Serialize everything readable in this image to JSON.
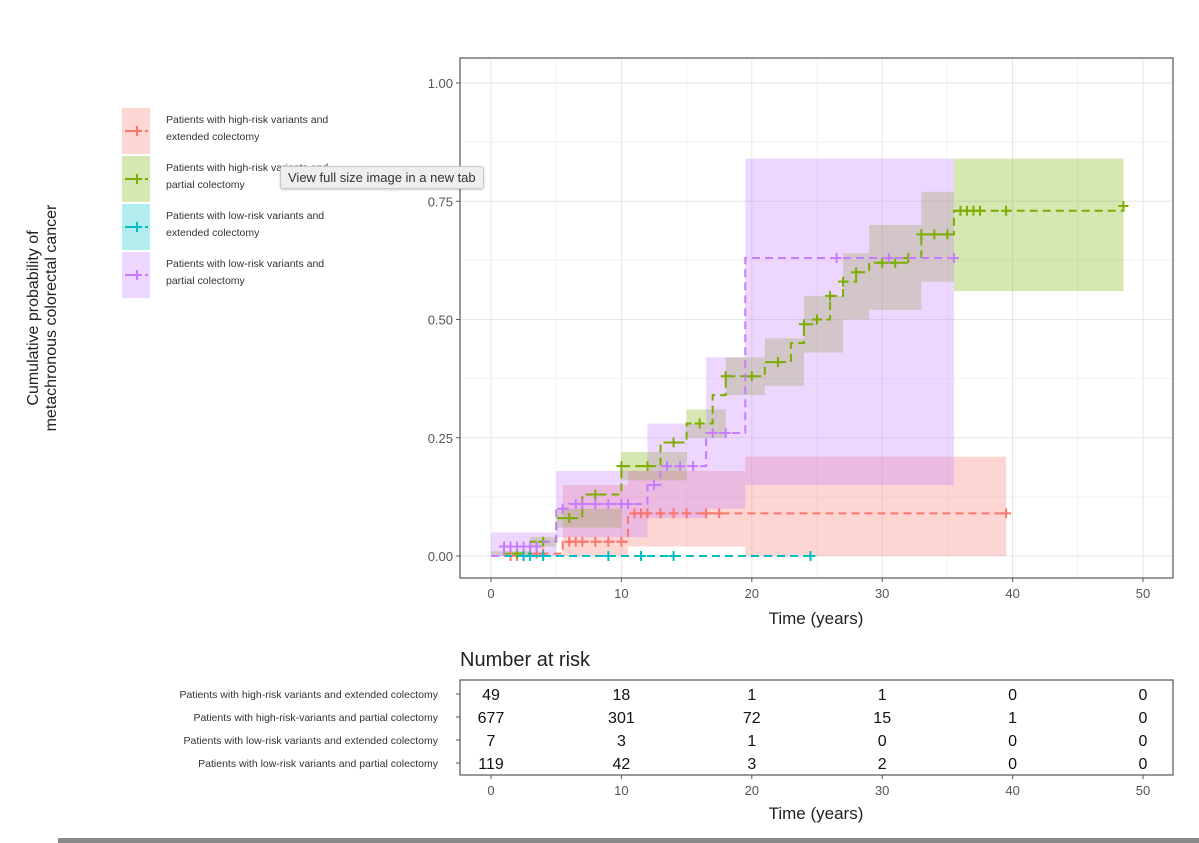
{
  "tooltip": "View full size image in a new tab",
  "chart_data": {
    "type": "line",
    "subtype": "kaplan-meier cumulative incidence (step) with confidence ribbons",
    "ylabel": [
      "Cumulative probability of",
      "metachronous colorectal cancer"
    ],
    "xlabel": "Time (years)",
    "xlim": [
      0,
      50
    ],
    "ylim": [
      0,
      1
    ],
    "xticks": [
      0,
      10,
      20,
      30,
      40,
      50
    ],
    "yticks": [
      "0.00",
      "0.25",
      "0.50",
      "0.75",
      "1.00"
    ],
    "grid": true,
    "legend_position": "left",
    "series": [
      {
        "name": "Patients with high-risk variants and extended colectomy",
        "color": "#f8766d",
        "steps": [
          [
            0,
            0
          ],
          [
            3,
            0.005
          ],
          [
            5.5,
            0.03
          ],
          [
            10.5,
            0.09
          ],
          [
            39.5,
            0.09
          ]
        ],
        "ci_lower": [
          [
            0,
            0
          ],
          [
            5.5,
            0
          ],
          [
            10.5,
            0.02
          ],
          [
            19.5,
            0
          ],
          [
            39.5,
            0
          ]
        ],
        "ci_upper": [
          [
            0,
            0
          ],
          [
            5.5,
            0.15
          ],
          [
            10.5,
            0.18
          ],
          [
            19.5,
            0.21
          ],
          [
            39.5,
            0.21
          ]
        ],
        "censored": [
          1.5,
          2,
          2.5,
          3.5,
          4,
          6,
          6.5,
          7,
          8,
          9,
          10,
          11,
          11.5,
          12,
          13,
          14,
          15,
          16.5,
          17.5,
          39.5
        ]
      },
      {
        "name": "Patients with high-risk variants and partial colectomy",
        "color": "#7cae00",
        "steps": [
          [
            0,
            0
          ],
          [
            1,
            0.005
          ],
          [
            3,
            0.03
          ],
          [
            5,
            0.08
          ],
          [
            7,
            0.13
          ],
          [
            10,
            0.19
          ],
          [
            13,
            0.24
          ],
          [
            15,
            0.28
          ],
          [
            17,
            0.34
          ],
          [
            18,
            0.38
          ],
          [
            19.5,
            0.38
          ],
          [
            21,
            0.41
          ],
          [
            23,
            0.45
          ],
          [
            24,
            0.49
          ],
          [
            25,
            0.5
          ],
          [
            26,
            0.55
          ],
          [
            27,
            0.58
          ],
          [
            28,
            0.6
          ],
          [
            29,
            0.62
          ],
          [
            31,
            0.62
          ],
          [
            32,
            0.63
          ],
          [
            33,
            0.68
          ],
          [
            35,
            0.68
          ],
          [
            35.5,
            0.73
          ],
          [
            48.5,
            0.74
          ]
        ],
        "ci_lower": [
          [
            0,
            0
          ],
          [
            3,
            0.02
          ],
          [
            5,
            0.06
          ],
          [
            10,
            0.16
          ],
          [
            15,
            0.25
          ],
          [
            18,
            0.34
          ],
          [
            21,
            0.36
          ],
          [
            24,
            0.43
          ],
          [
            27,
            0.5
          ],
          [
            29,
            0.52
          ],
          [
            33,
            0.58
          ],
          [
            35.5,
            0.56
          ],
          [
            48.5,
            0.56
          ]
        ],
        "ci_upper": [
          [
            0,
            0.01
          ],
          [
            3,
            0.04
          ],
          [
            5,
            0.1
          ],
          [
            10,
            0.22
          ],
          [
            15,
            0.31
          ],
          [
            18,
            0.42
          ],
          [
            21,
            0.46
          ],
          [
            24,
            0.55
          ],
          [
            27,
            0.64
          ],
          [
            29,
            0.7
          ],
          [
            33,
            0.77
          ],
          [
            35.5,
            0.84
          ],
          [
            48.5,
            0.84
          ]
        ],
        "censored": [
          2,
          4,
          6,
          8,
          10,
          12,
          14,
          16,
          18,
          20,
          22,
          24,
          25,
          26,
          27,
          28,
          30,
          31,
          32,
          33,
          34,
          35,
          36,
          36.5,
          37,
          37.5,
          39.5,
          48.5
        ]
      },
      {
        "name": "Patients with low-risk variants and extended colectomy",
        "color": "#00bfc4",
        "steps": [
          [
            0,
            0
          ],
          [
            24.5,
            0
          ]
        ],
        "ci_lower": [],
        "ci_upper": [],
        "censored": [
          2.5,
          3,
          4,
          9,
          11.5,
          14,
          24.5
        ]
      },
      {
        "name": "Patients with low-risk variants and partial colectomy",
        "color": "#c77cff",
        "steps": [
          [
            0,
            0
          ],
          [
            1,
            0.02
          ],
          [
            4,
            0.03
          ],
          [
            5,
            0.1
          ],
          [
            6,
            0.11
          ],
          [
            11,
            0.11
          ],
          [
            12,
            0.15
          ],
          [
            13,
            0.19
          ],
          [
            16,
            0.19
          ],
          [
            16.5,
            0.26
          ],
          [
            19,
            0.26
          ],
          [
            19.5,
            0.63
          ],
          [
            35.5,
            0.63
          ]
        ],
        "ci_lower": [
          [
            0,
            0
          ],
          [
            5,
            0.04
          ],
          [
            12,
            0.08
          ],
          [
            16.5,
            0.1
          ],
          [
            19.5,
            0.15
          ],
          [
            35.5,
            0.15
          ]
        ],
        "ci_upper": [
          [
            0,
            0.05
          ],
          [
            5,
            0.18
          ],
          [
            12,
            0.28
          ],
          [
            16.5,
            0.42
          ],
          [
            19.5,
            0.84
          ],
          [
            35.5,
            0.84
          ]
        ],
        "censored": [
          1,
          1.5,
          2,
          2.5,
          3,
          3.5,
          5.5,
          6.5,
          7,
          8,
          9,
          10,
          10.5,
          12.5,
          13.5,
          14.5,
          15.5,
          17,
          18,
          26.5,
          30.5,
          35.5
        ]
      }
    ],
    "risk_table": {
      "title": "Number at risk",
      "xlabel": "Time (years)",
      "times": [
        0,
        10,
        20,
        30,
        40,
        50
      ],
      "rows": [
        {
          "label": "Patients with high-risk variants and extended colectomy",
          "counts": [
            "49",
            "18",
            "1",
            "1",
            "0",
            "0"
          ]
        },
        {
          "label": "Patients with high-risk-variants and partial colectomy",
          "counts": [
            "677",
            "301",
            "72",
            "15",
            "1",
            "0"
          ]
        },
        {
          "label": "Patients with low-risk variants and extended colectomy",
          "counts": [
            "7",
            "3",
            "1",
            "0",
            "0",
            "0"
          ]
        },
        {
          "label": "Patients with low-risk variants and partial colectomy",
          "counts": [
            "119",
            "42",
            "3",
            "2",
            "0",
            "0"
          ]
        }
      ]
    },
    "legend_labels": [
      [
        "Patients with high-risk variants and",
        "extended colectomy"
      ],
      [
        "Patients with high-risk variants and",
        "partial colectomy"
      ],
      [
        "Patients with low-risk variants and",
        "extended colectomy"
      ],
      [
        "Patients with low-risk variants and",
        "partial colectomy"
      ]
    ]
  }
}
